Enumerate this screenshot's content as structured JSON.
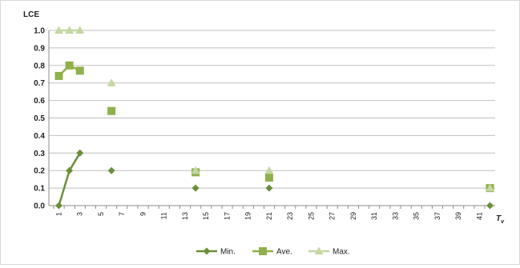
{
  "chart_data": {
    "type": "line",
    "title": "",
    "ylabel": "LCE",
    "xlabel": "T",
    "xlabel_subscript": "v",
    "ylim": [
      0,
      1.0
    ],
    "yticks": [
      "0.0",
      "0.1",
      "0.2",
      "0.3",
      "0.4",
      "0.5",
      "0.6",
      "0.7",
      "0.8",
      "0.9",
      "1.0"
    ],
    "xticks": [
      "1",
      "3",
      "5",
      "7",
      "9",
      "11",
      "13",
      "15",
      "17",
      "19",
      "21",
      "23",
      "25",
      "27",
      "29",
      "31",
      "33",
      "35",
      "37",
      "39",
      "41"
    ],
    "x_range": [
      1,
      42
    ],
    "grid": "horizontal",
    "legend_position": "bottom",
    "series": [
      {
        "name": "Min.",
        "marker": "diamond",
        "color": "#6b8e3a",
        "x": [
          1,
          2,
          3,
          6,
          14,
          21,
          42
        ],
        "values": [
          0.0,
          0.2,
          0.3,
          0.2,
          0.1,
          0.1,
          0.0
        ]
      },
      {
        "name": "Ave.",
        "marker": "square",
        "color": "#8fb04a",
        "x": [
          1,
          2,
          3,
          6,
          14,
          21,
          42
        ],
        "values": [
          0.74,
          0.8,
          0.77,
          0.54,
          0.19,
          0.16,
          0.1
        ]
      },
      {
        "name": "Max.",
        "marker": "triangle",
        "color": "#c4d7a3",
        "x": [
          1,
          2,
          3,
          6,
          14,
          21,
          42
        ],
        "values": [
          1.0,
          1.0,
          1.0,
          0.7,
          0.2,
          0.2,
          0.1
        ]
      }
    ]
  }
}
